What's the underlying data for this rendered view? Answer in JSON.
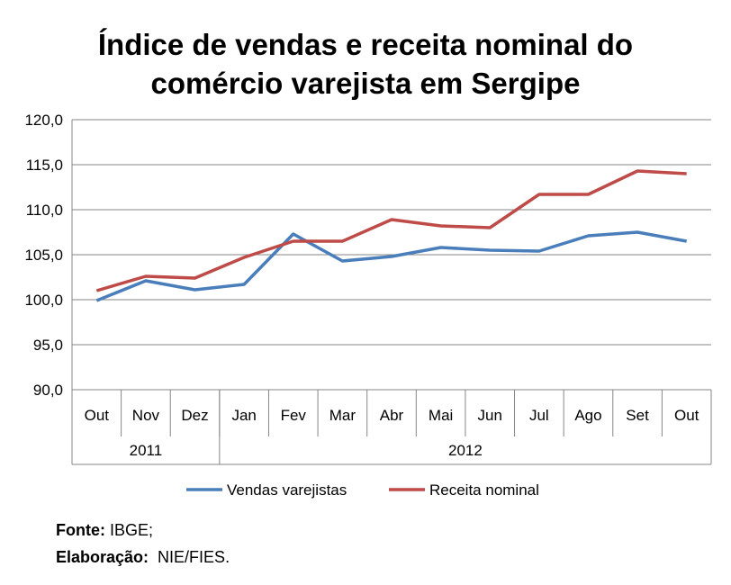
{
  "chart_data": {
    "type": "line",
    "title_line1": "Índice de vendas e receita nominal do",
    "title_line2": "comércio varejista em Sergipe",
    "categories": [
      "Out",
      "Nov",
      "Dez",
      "Jan",
      "Fev",
      "Mar",
      "Abr",
      "Mai",
      "Jun",
      "Jul",
      "Ago",
      "Set",
      "Out"
    ],
    "year_groups": [
      {
        "label": "2011",
        "span": 3
      },
      {
        "label": "2012",
        "span": 10
      }
    ],
    "ylim": [
      90,
      120
    ],
    "yticks": [
      "90,0",
      "95,0",
      "100,0",
      "105,0",
      "110,0",
      "115,0",
      "120,0"
    ],
    "grid": true,
    "legend_position": "bottom",
    "series": [
      {
        "name": "Vendas varejistas",
        "color": "#4a7ebb",
        "values": [
          99.9,
          102.1,
          101.1,
          101.7,
          107.3,
          104.3,
          104.8,
          105.8,
          105.5,
          105.4,
          107.1,
          107.5,
          106.5
        ]
      },
      {
        "name": "Receita nominal",
        "color": "#be4b48",
        "values": [
          101.0,
          102.6,
          102.4,
          104.7,
          106.5,
          106.5,
          108.9,
          108.2,
          108.0,
          111.7,
          111.7,
          114.3,
          114.0
        ]
      }
    ]
  },
  "source": {
    "fonte_label": "Fonte:",
    "fonte_value": " IBGE;",
    "elab_label": "Elaboração:",
    "elab_value": "  NIE/FIES."
  }
}
